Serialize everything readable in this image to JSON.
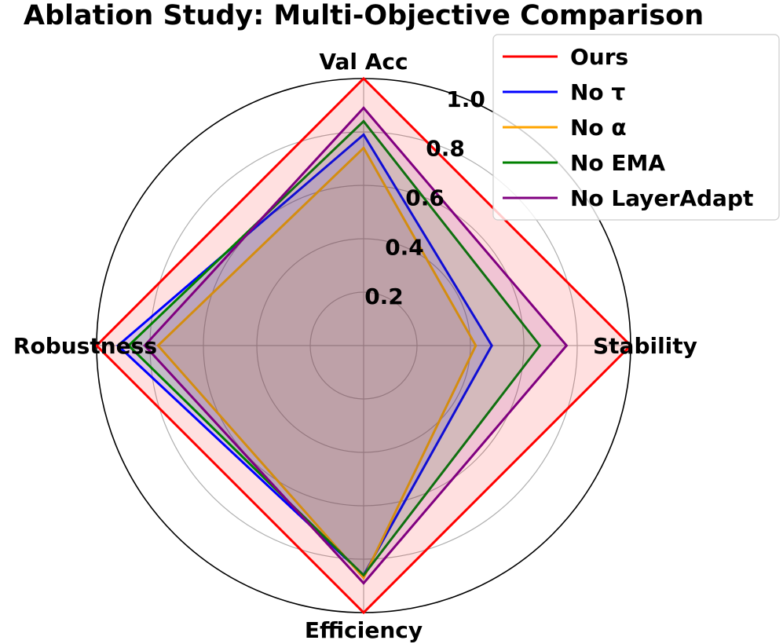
{
  "chart_data": {
    "type": "radar",
    "title": "Ablation Study: Multi-Objective Comparison",
    "axes": [
      "Val Acc",
      "Stability",
      "Efficiency",
      "Robustness"
    ],
    "rlim": [
      0,
      1.0
    ],
    "rticks": [
      0.2,
      0.4,
      0.6,
      0.8,
      1.0
    ],
    "rtick_labels": [
      "0.2",
      "0.4",
      "0.6",
      "0.8",
      "1.0"
    ],
    "grid": true,
    "legend_position": "top-right",
    "series": [
      {
        "name": "Ours",
        "color": "#ff0000",
        "fill": "#ff0000",
        "values": [
          1.0,
          1.0,
          1.0,
          1.0
        ]
      },
      {
        "name": "No τ",
        "color": "#0000ff",
        "fill": "#0000ff",
        "values": [
          0.79,
          0.48,
          0.86,
          0.92
        ]
      },
      {
        "name": "No α",
        "color": "#ffa500",
        "fill": "#ffa500",
        "values": [
          0.74,
          0.42,
          0.87,
          0.77
        ]
      },
      {
        "name": "No EMA",
        "color": "#008000",
        "fill": "#008000",
        "values": [
          0.84,
          0.66,
          0.86,
          0.88
        ]
      },
      {
        "name": "No LayerAdapt",
        "color": "#800080",
        "fill": "#800080",
        "values": [
          0.89,
          0.76,
          0.89,
          0.82
        ]
      }
    ]
  }
}
